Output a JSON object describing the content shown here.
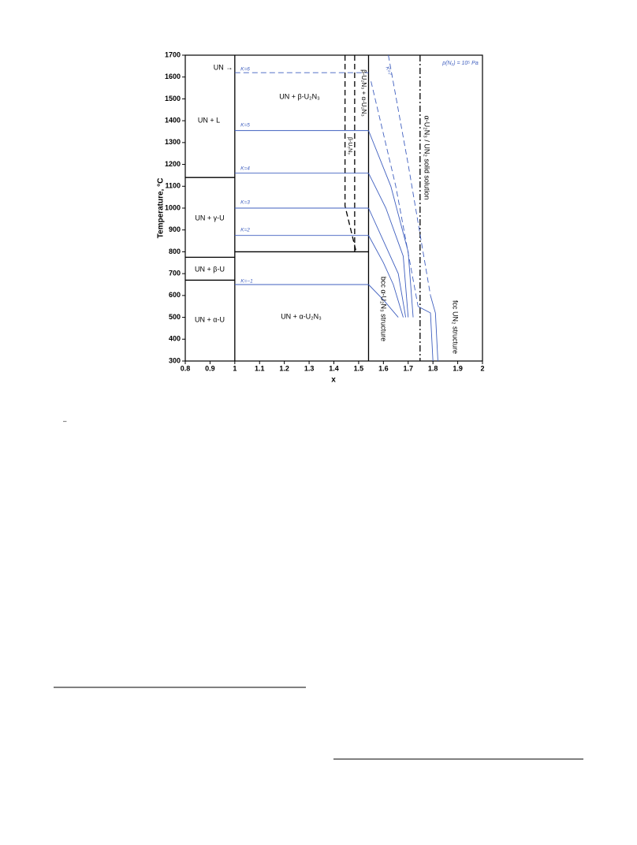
{
  "chart_data": {
    "type": "phase-diagram",
    "xlabel": "x",
    "ylabel": "Temperature, °C",
    "xlim": [
      0.8,
      2
    ],
    "ylim": [
      300,
      1700
    ],
    "xticks": [
      0.8,
      0.9,
      1,
      1.1,
      1.2,
      1.3,
      1.4,
      1.5,
      1.6,
      1.7,
      1.8,
      1.9,
      2
    ],
    "yticks": [
      300,
      400,
      500,
      600,
      700,
      800,
      900,
      1000,
      1100,
      1200,
      1300,
      1400,
      1500,
      1600,
      1700
    ],
    "lines": [
      {
        "style": "solid",
        "color": "#000000",
        "x": [
          1,
          1
        ],
        "y": [
          300,
          1700
        ]
      },
      {
        "style": "solid",
        "color": "#000000",
        "x": [
          1.54,
          1.54
        ],
        "y": [
          300,
          1700
        ]
      },
      {
        "style": "solid",
        "color": "#000000",
        "x": [
          0.8,
          1
        ],
        "y": [
          1140,
          1140
        ]
      },
      {
        "style": "solid",
        "color": "#000000",
        "x": [
          0.8,
          1
        ],
        "y": [
          775,
          775
        ]
      },
      {
        "style": "solid",
        "color": "#000000",
        "x": [
          0.8,
          1
        ],
        "y": [
          670,
          670
        ]
      },
      {
        "style": "solid",
        "color": "#000000",
        "x": [
          1,
          1.54
        ],
        "y": [
          800,
          800
        ]
      },
      {
        "style": "dashed",
        "color": "#000000",
        "x": [
          1.445,
          1.445,
          1.49
        ],
        "y": [
          1700,
          1010,
          800
        ]
      },
      {
        "style": "dashed",
        "color": "#000000",
        "x": [
          1.484,
          1.484
        ],
        "y": [
          1700,
          800
        ]
      },
      {
        "style": "dashdot",
        "color": "#000000",
        "x": [
          1.748,
          1.748
        ],
        "y": [
          1700,
          300
        ]
      },
      {
        "style": "dashed",
        "color": "#3f5fbf",
        "x": [
          1,
          1.54
        ],
        "y": [
          1620,
          1620
        ]
      },
      {
        "style": "solid",
        "color": "#3f5fbf",
        "x": [
          1,
          1.54
        ],
        "y": [
          1355,
          1355
        ]
      },
      {
        "style": "solid",
        "color": "#3f5fbf",
        "x": [
          1,
          1.54
        ],
        "y": [
          1160,
          1160
        ]
      },
      {
        "style": "solid",
        "color": "#3f5fbf",
        "x": [
          1,
          1.54
        ],
        "y": [
          1000,
          1000
        ]
      },
      {
        "style": "solid",
        "color": "#3f5fbf",
        "x": [
          1,
          1.54
        ],
        "y": [
          875,
          875
        ]
      },
      {
        "style": "solid",
        "color": "#3f5fbf",
        "x": [
          1,
          1.54
        ],
        "y": [
          650,
          650
        ]
      },
      {
        "style": "solid",
        "color": "#3f5fbf",
        "x": [
          1.54,
          1.63,
          1.7,
          1.72
        ],
        "y": [
          1355,
          1100,
          800,
          500
        ]
      },
      {
        "style": "solid",
        "color": "#3f5fbf",
        "x": [
          1.54,
          1.61,
          1.68,
          1.7
        ],
        "y": [
          1160,
          1000,
          780,
          500
        ]
      },
      {
        "style": "solid",
        "color": "#3f5fbf",
        "x": [
          1.54,
          1.6,
          1.66,
          1.69
        ],
        "y": [
          1000,
          850,
          700,
          500
        ]
      },
      {
        "style": "solid",
        "color": "#3f5fbf",
        "x": [
          1.54,
          1.6,
          1.64,
          1.68
        ],
        "y": [
          875,
          750,
          650,
          500
        ]
      },
      {
        "style": "solid",
        "color": "#3f5fbf",
        "x": [
          1.54,
          1.6,
          1.66
        ],
        "y": [
          650,
          580,
          500
        ]
      },
      {
        "style": "dashed",
        "color": "#3f5fbf",
        "x": [
          1.55,
          1.65,
          1.74
        ],
        "y": [
          1580,
          1100,
          550
        ]
      },
      {
        "style": "dashed",
        "color": "#3f5fbf",
        "x": [
          1.62,
          1.7,
          1.79
        ],
        "y": [
          1700,
          1200,
          600
        ]
      },
      {
        "style": "solid",
        "color": "#3f5fbf",
        "x": [
          1.74,
          1.79,
          1.8
        ],
        "y": [
          550,
          520,
          300
        ]
      },
      {
        "style": "solid",
        "color": "#3f5fbf",
        "x": [
          1.79,
          1.81,
          1.82
        ],
        "y": [
          600,
          520,
          300
        ]
      }
    ],
    "annotations": [
      "UN →",
      "UN + L",
      "UN + γ-U",
      "UN + β-U",
      "UN + α-U",
      "UN + β-U₂N₃",
      "UN + α-U₂N₃",
      "β-U₂N₃ + α-U₂N₃",
      "β-U₂N₃",
      "α-U₂N₃ / UN₂ solid solution",
      "bcc α-U₂N₃ structure",
      "fcc UN₂ structure",
      "p(N₂) = 10⁵ Pa",
      "K=6",
      "K=5",
      "K=4",
      "K=3",
      "K=2",
      "K=−1",
      "K=7"
    ],
    "footnote_marker": "–"
  }
}
